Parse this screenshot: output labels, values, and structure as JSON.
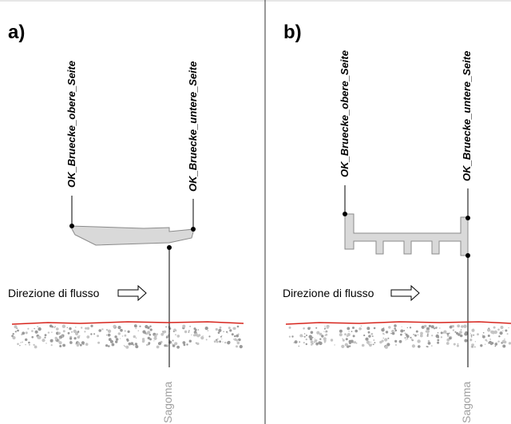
{
  "panels": [
    {
      "label": "a)",
      "upper_label": "OK_Bruecke_obere_Seite",
      "lower_label": "OK_Bruecke_untere_Seite",
      "flow_label": "Direzione di flusso",
      "profile_label": "Sagoma"
    },
    {
      "label": "b)",
      "upper_label": "OK_Bruecke_obere_Seite",
      "lower_label": "OK_Bruecke_untere_Seite",
      "flow_label": "Direzione di flusso",
      "profile_label": "Sagoma"
    }
  ]
}
